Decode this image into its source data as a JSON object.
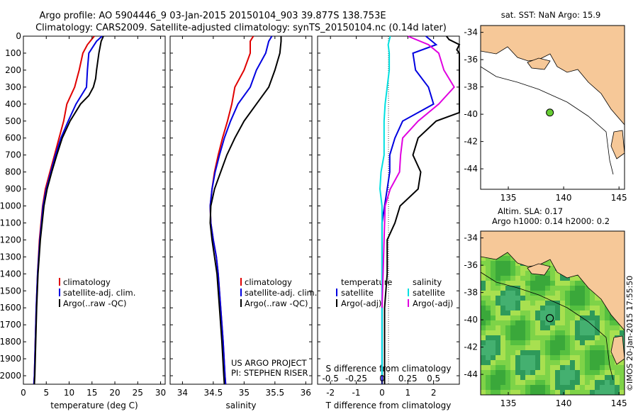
{
  "header": {
    "title_line1": "Argo profile: AO 5904446_9 03-Jan-2015 20150104_903 39.877S 138.753E",
    "title_line2": "Climatology: CARS2009. Satellite-adjusted climatology: synTS_20150104.nc (0.14d later)"
  },
  "watermark": "©IMOS 20-Jan-2015 17:55:50",
  "colors": {
    "climatology": "#e00000",
    "satellite": "#0000e0",
    "argo": "#000000",
    "sat_salinity": "#00e0e0",
    "argo_salinity_diff": "#e000e0",
    "land": "#f6c898",
    "ocean_sst": "#ffffff",
    "argo_marker": "#66cc33"
  },
  "chart_data": [
    {
      "type": "line",
      "xlabel": "temperature (deg C)",
      "ylabel": "",
      "xlim": [
        0,
        31
      ],
      "ylim": [
        2050,
        0
      ],
      "xticks": [
        0,
        5,
        10,
        15,
        20,
        25,
        30
      ],
      "yticks": [
        0,
        100,
        200,
        300,
        400,
        500,
        600,
        700,
        800,
        900,
        1000,
        1100,
        1200,
        1300,
        1400,
        1500,
        1600,
        1700,
        1800,
        1900,
        2000
      ],
      "legend": [
        "climatology",
        "satellite-adj. clim.",
        "Argo(..raw -QC)"
      ],
      "legend_position": "lower-center",
      "series": [
        {
          "name": "climatology",
          "color": "#e00000",
          "depth": [
            0,
            50,
            100,
            200,
            300,
            400,
            500,
            600,
            700,
            800,
            900,
            1000,
            1200,
            1400,
            1600,
            1800,
            2000,
            2070
          ],
          "values": [
            15.5,
            14,
            13,
            12.2,
            11.2,
            9.5,
            8.8,
            7.8,
            6.8,
            5.8,
            4.8,
            4.2,
            3.5,
            3.1,
            2.8,
            2.6,
            2.4,
            2.3
          ]
        },
        {
          "name": "satellite-adj. clim.",
          "color": "#0000e0",
          "depth": [
            0,
            30,
            100,
            200,
            300,
            400,
            500,
            600,
            700,
            800,
            900,
            1000,
            1200,
            1400,
            1600,
            1800,
            2000,
            2070
          ],
          "values": [
            17.2,
            16,
            14.3,
            14,
            13.8,
            11.5,
            9.8,
            8.2,
            7,
            6,
            5,
            4.3,
            3.6,
            3.1,
            2.8,
            2.6,
            2.4,
            2.3
          ]
        },
        {
          "name": "Argo(..raw -QC)",
          "color": "#000000",
          "depth": [
            0,
            30,
            100,
            200,
            250,
            300,
            350,
            400,
            500,
            600,
            700,
            800,
            900,
            1000,
            1200,
            1400,
            1600,
            1800,
            2000,
            2050
          ],
          "values": [
            17.5,
            17,
            16.5,
            16,
            15.8,
            15.3,
            14.3,
            12.5,
            10.2,
            8.5,
            7.3,
            6.2,
            5.2,
            4.5,
            3.7,
            3.2,
            2.9,
            2.7,
            2.5,
            2.4
          ]
        }
      ]
    },
    {
      "type": "line",
      "xlabel": "salinity",
      "ylabel": "",
      "xlim": [
        33.8,
        36.1
      ],
      "ylim": [
        2050,
        0
      ],
      "xticks": [
        34,
        34.5,
        35,
        35.5,
        36
      ],
      "legend": [
        "climatology",
        "satellite-adj. clim.",
        "Argo(..raw -QC)"
      ],
      "legend_position": "lower-center",
      "annotation": [
        "US ARGO PROJECT",
        "PI: STEPHEN RISER"
      ],
      "series": [
        {
          "name": "climatology",
          "color": "#e00000",
          "depth": [
            0,
            30,
            100,
            200,
            300,
            400,
            500,
            600,
            700,
            800,
            900,
            1000,
            1100,
            1200,
            1300,
            1400,
            1600,
            1800,
            2000,
            2070
          ],
          "values": [
            35.15,
            35.1,
            35.1,
            35.0,
            34.85,
            34.8,
            34.73,
            34.65,
            34.58,
            34.52,
            34.48,
            34.45,
            34.46,
            34.5,
            34.55,
            34.58,
            34.62,
            34.66,
            34.69,
            34.7
          ]
        },
        {
          "name": "satellite-adj. clim.",
          "color": "#0000e0",
          "depth": [
            0,
            30,
            100,
            200,
            300,
            400,
            500,
            600,
            700,
            800,
            900,
            1000,
            1100,
            1200,
            1300,
            1400,
            1600,
            1800,
            2000,
            2070
          ],
          "values": [
            35.45,
            35.4,
            35.35,
            35.2,
            35.1,
            34.9,
            34.78,
            34.68,
            34.6,
            34.53,
            34.48,
            34.45,
            34.46,
            34.5,
            34.55,
            34.58,
            34.62,
            34.66,
            34.69,
            34.7
          ]
        },
        {
          "name": "Argo(..raw -QC)",
          "color": "#000000",
          "depth": [
            0,
            30,
            100,
            200,
            300,
            400,
            500,
            600,
            700,
            800,
            900,
            1000,
            1100,
            1200,
            1300,
            1400,
            1600,
            1800,
            2000,
            2050
          ],
          "values": [
            35.6,
            35.6,
            35.58,
            35.5,
            35.4,
            35.2,
            35.0,
            34.85,
            34.72,
            34.62,
            34.52,
            34.46,
            34.45,
            34.48,
            34.52,
            34.56,
            34.6,
            34.64,
            34.67,
            34.68
          ]
        }
      ]
    },
    {
      "type": "line",
      "xlabel": "T difference from climatology",
      "xlabel_top": "S difference from climatology",
      "xlim": [
        -2.5,
        3
      ],
      "ylim": [
        2050,
        0
      ],
      "xticks": [
        -2,
        -1,
        0,
        1,
        2
      ],
      "top_xlim": [
        -0.625,
        0.75
      ],
      "top_xticks": [
        -0.5,
        -0.25,
        0,
        0.25,
        0.5
      ],
      "legend": [
        "temperature",
        "satellite",
        "Argo(-adj)",
        "salinity",
        "satellite",
        "Argo(-adj)"
      ],
      "legend_position": "lower-center",
      "series": [
        {
          "name": "temperature satellite",
          "color": "#0000e0",
          "depth": [
            0,
            50,
            100,
            200,
            300,
            400,
            500,
            600,
            700,
            800,
            900,
            1000,
            1100,
            1200,
            1400,
            1600,
            1800,
            2000,
            2050
          ],
          "values": [
            1.7,
            2.1,
            1.2,
            1.3,
            1.8,
            2.0,
            0.8,
            0.5,
            0.3,
            0.3,
            0.2,
            0.1,
            0.0,
            0.0,
            0.0,
            0.0,
            0.0,
            0.0,
            0.0
          ]
        },
        {
          "name": "temperature Argo(-adj)",
          "color": "#000000",
          "depth": [
            0,
            20,
            50,
            80,
            100,
            150,
            200,
            250,
            300,
            350,
            400,
            450,
            500,
            600,
            700,
            800,
            900,
            1000,
            1100,
            1200,
            1400,
            1600,
            1800,
            2000,
            2050
          ],
          "values": [
            2.5,
            2.6,
            3.0,
            2.9,
            3.1,
            3.2,
            3.4,
            3.9,
            4.1,
            4.0,
            3.5,
            3.0,
            2.1,
            1.4,
            1.2,
            1.5,
            1.4,
            0.7,
            0.5,
            0.2,
            0.2,
            0.1,
            0.1,
            0.1,
            0.1
          ]
        },
        {
          "name": "salinity satellite",
          "color": "#00e0e0",
          "depth": [
            0,
            50,
            100,
            200,
            300,
            400,
            500,
            600,
            700,
            800,
            900,
            1000,
            1200,
            1400,
            1600,
            1800,
            2000
          ],
          "values": [
            0.08,
            0.06,
            0.07,
            0.07,
            0.05,
            0.03,
            0.02,
            0.02,
            0.02,
            -0.01,
            -0.02,
            0.0,
            0.0,
            0.0,
            0.0,
            0.0,
            0.0
          ]
        },
        {
          "name": "salinity Argo(-adj)",
          "color": "#e000e0",
          "depth": [
            0,
            50,
            100,
            200,
            300,
            400,
            500,
            600,
            700,
            800,
            900,
            1000,
            1200,
            1400,
            1600
          ],
          "values": [
            0.25,
            0.45,
            0.55,
            0.6,
            0.7,
            0.55,
            0.35,
            0.2,
            0.18,
            0.17,
            0.08,
            0.03,
            0.02,
            0.01,
            0.0
          ]
        }
      ]
    },
    {
      "type": "map",
      "title": "sat. SST: NaN Argo: 15.9",
      "xticks": [
        135,
        140,
        145
      ],
      "yticks": [
        -34,
        -36,
        -38,
        -40,
        -42,
        -44
      ],
      "xlim": [
        132.5,
        145.5
      ],
      "ylim": [
        -45.5,
        -33.5
      ],
      "argo_lon": 138.753,
      "argo_lat": -39.877
    },
    {
      "type": "heatmap",
      "title_line1": "Altim. SLA: 0.17",
      "title_line2": "Argo h1000: 0.14 h2000: 0.2",
      "xticks": [
        135,
        140,
        145
      ],
      "yticks": [
        -34,
        -36,
        -38,
        -40,
        -42,
        -44
      ],
      "xlim": [
        132.5,
        145.5
      ],
      "ylim": [
        -45.5,
        -33.5
      ],
      "argo_lon": 138.753,
      "argo_lat": -39.877
    }
  ]
}
